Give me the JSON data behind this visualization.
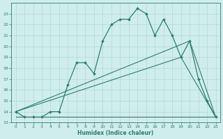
{
  "line1_x": [
    0,
    1,
    2,
    3,
    4,
    5,
    6,
    7,
    8,
    9,
    10,
    11,
    12,
    13,
    14,
    15,
    16,
    17,
    18,
    19,
    20,
    21,
    22,
    23
  ],
  "line1_y": [
    14.0,
    13.5,
    13.5,
    13.5,
    14.0,
    14.0,
    16.5,
    18.5,
    18.5,
    17.5,
    20.5,
    22.0,
    22.5,
    22.5,
    23.5,
    23.0,
    21.0,
    22.5,
    21.0,
    19.0,
    20.5,
    17.0,
    15.0,
    13.5
  ],
  "line2_x": [
    0,
    19,
    23
  ],
  "line2_y": [
    14.0,
    19.0,
    13.5
  ],
  "line3_x": [
    0,
    20,
    23
  ],
  "line3_y": [
    14.0,
    20.5,
    13.5
  ],
  "line4_x": [
    0,
    23
  ],
  "line4_y": [
    13.5,
    13.5
  ],
  "color": "#2d7d6e",
  "bg_color": "#d0eded",
  "grid_color": "#afd8d8",
  "xlabel": "Humidex (Indice chaleur)",
  "xlim": [
    -0.5,
    23.5
  ],
  "ylim": [
    13,
    24
  ],
  "yticks": [
    13,
    14,
    15,
    16,
    17,
    18,
    19,
    20,
    21,
    22,
    23
  ],
  "xticks": [
    0,
    1,
    2,
    3,
    4,
    5,
    6,
    7,
    8,
    9,
    10,
    11,
    12,
    13,
    14,
    15,
    16,
    17,
    18,
    19,
    20,
    21,
    22,
    23
  ]
}
